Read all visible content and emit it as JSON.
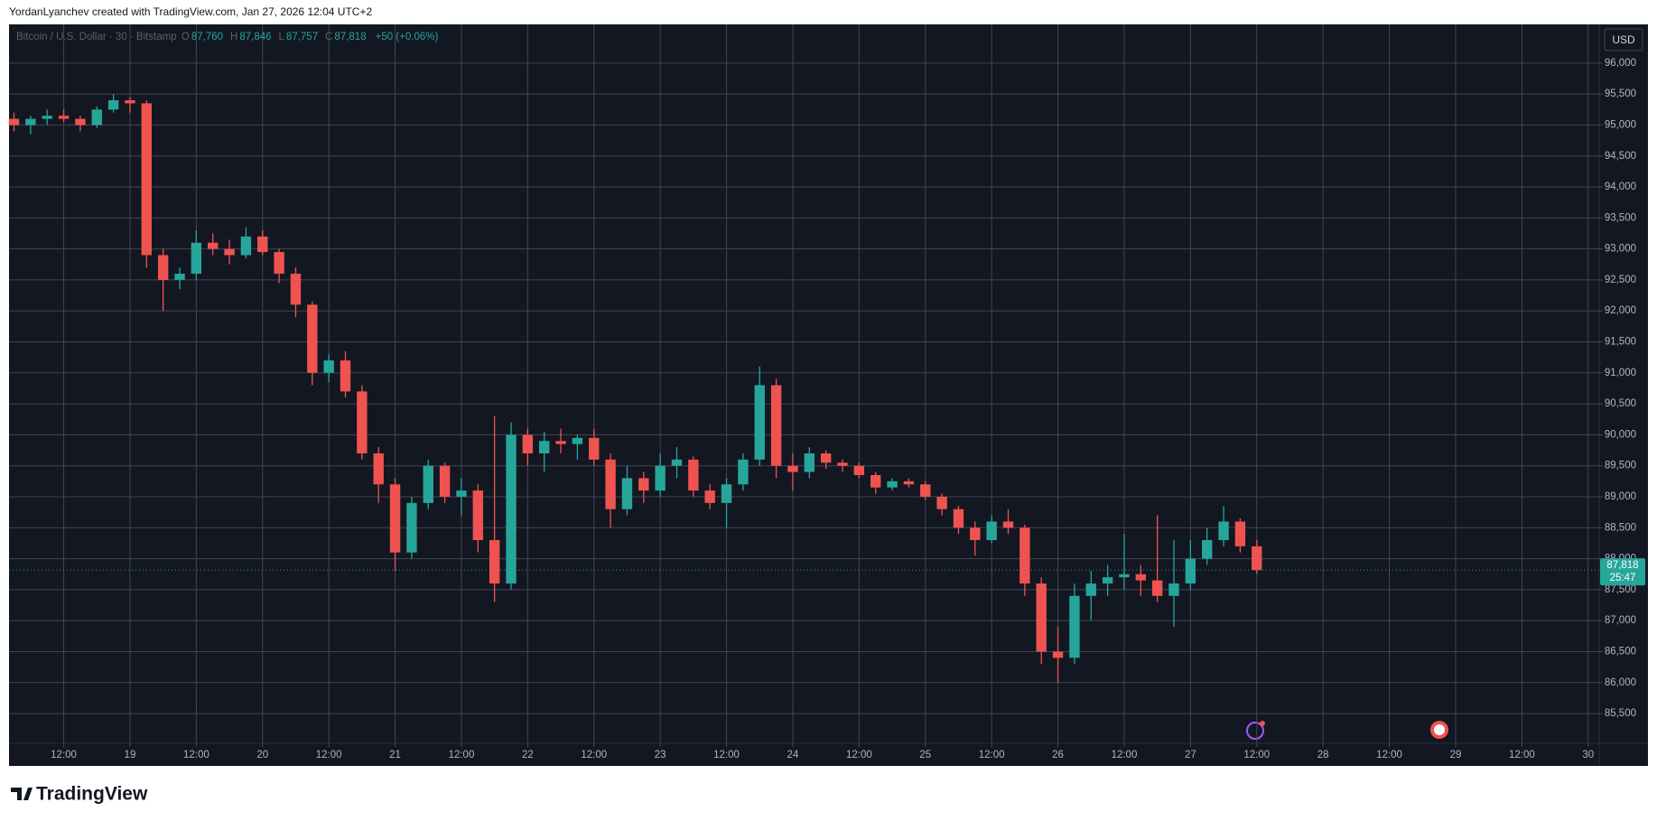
{
  "header": {
    "attribution": "YordanLyanchev created with TradingView.com, Jan 27, 2026 12:04 UTC+2"
  },
  "footer": {
    "brand": "TradingView"
  },
  "chart_data": {
    "type": "candlestick",
    "title": "Bitcoin / U.S. Dollar · 30 · Bitstamp",
    "ohlc_legend": [
      {
        "key": "O",
        "value": "87,760"
      },
      {
        "key": "H",
        "value": "87,846"
      },
      {
        "key": "L",
        "value": "87,757"
      },
      {
        "key": "C",
        "value": "87,818"
      },
      {
        "key": "",
        "value": "+50 (+0.06%)"
      }
    ],
    "currency": "USD",
    "up_color": "#26a69a",
    "down_color": "#ef5350",
    "x": [
      3,
      6,
      9,
      12,
      15,
      18,
      21,
      24,
      27,
      30,
      33,
      36,
      39,
      42,
      45,
      48,
      51,
      54,
      57,
      60,
      63,
      66,
      69,
      72,
      75,
      78,
      81,
      84,
      87,
      90,
      93,
      96,
      99,
      102,
      105,
      108,
      111,
      114,
      117,
      120,
      123,
      126,
      129,
      132,
      135,
      138,
      141,
      144,
      147,
      150,
      153,
      156,
      159,
      162,
      165,
      168,
      171,
      174,
      177,
      180,
      183,
      186,
      189,
      192,
      195,
      198,
      201,
      204,
      207,
      210,
      213,
      216,
      219,
      222,
      225,
      228
    ],
    "open": [
      95100,
      95000,
      95100,
      95150,
      95100,
      95000,
      95250,
      95400,
      95350,
      92900,
      92500,
      92600,
      93100,
      93000,
      92900,
      93200,
      92950,
      92600,
      92100,
      91000,
      91200,
      90700,
      89700,
      89200,
      88100,
      88900,
      89500,
      89000,
      89100,
      88300,
      87600,
      90000,
      89700,
      89900,
      89850,
      89950,
      89600,
      88800,
      89300,
      89100,
      89500,
      89600,
      89100,
      88900,
      89200,
      89600,
      90800,
      89500,
      89400,
      89700,
      89550,
      89500,
      89350,
      89150,
      89250,
      89200,
      89000,
      88800,
      88500,
      88300,
      88600,
      88500,
      87600,
      86500,
      86400,
      87400,
      87600,
      87700,
      87750,
      87650,
      87400,
      87600,
      88000,
      88300,
      88600,
      88200
    ],
    "high": [
      95200,
      95150,
      95250,
      95250,
      95150,
      95300,
      95500,
      95450,
      95400,
      93000,
      92700,
      93300,
      93250,
      93150,
      93350,
      93300,
      93000,
      92700,
      92150,
      91300,
      91350,
      90800,
      89800,
      89300,
      89000,
      89600,
      89550,
      89300,
      89200,
      90300,
      90200,
      90100,
      90050,
      90100,
      90000,
      90100,
      89700,
      89500,
      89400,
      89700,
      89800,
      89650,
      89200,
      89300,
      89700,
      91100,
      90900,
      89700,
      89800,
      89750,
      89600,
      89550,
      89400,
      89300,
      89300,
      89250,
      89050,
      88850,
      88600,
      88700,
      88800,
      88550,
      87700,
      86900,
      87600,
      87800,
      87900,
      88400,
      87900,
      88700,
      88300,
      88300,
      88500,
      88850,
      88650,
      88300
    ],
    "low": [
      94900,
      94850,
      95000,
      95050,
      94900,
      94950,
      95200,
      95200,
      92700,
      92000,
      92350,
      92500,
      92900,
      92750,
      92850,
      92900,
      92450,
      91900,
      90800,
      90850,
      90600,
      89600,
      88900,
      87800,
      88000,
      88800,
      88900,
      88700,
      88100,
      87300,
      87500,
      89500,
      89400,
      89700,
      89600,
      89500,
      88500,
      88700,
      88900,
      89000,
      89300,
      89000,
      88800,
      88500,
      89100,
      89500,
      89300,
      89100,
      89300,
      89450,
      89400,
      89300,
      89050,
      89100,
      89150,
      88950,
      88700,
      88400,
      88050,
      88250,
      88400,
      87400,
      86300,
      86000,
      86300,
      87000,
      87400,
      87500,
      87400,
      87300,
      86900,
      87500,
      87900,
      88200,
      88100,
      87757
    ],
    "close": [
      95000,
      95100,
      95150,
      95100,
      95000,
      95250,
      95400,
      95350,
      92900,
      92500,
      92600,
      93100,
      93000,
      92900,
      93200,
      92950,
      92600,
      92100,
      91000,
      91200,
      90700,
      89700,
      89200,
      88100,
      88900,
      89500,
      89000,
      89100,
      88300,
      87600,
      90000,
      89700,
      89900,
      89850,
      89950,
      89600,
      88800,
      89300,
      89100,
      89500,
      89600,
      89100,
      88900,
      89200,
      89600,
      90800,
      89500,
      89400,
      89700,
      89550,
      89500,
      89350,
      89150,
      89250,
      89200,
      89000,
      88800,
      88500,
      88300,
      88600,
      88500,
      87600,
      86500,
      86400,
      87400,
      87600,
      87700,
      87750,
      87650,
      87400,
      87600,
      88000,
      88300,
      88600,
      88200,
      87818
    ],
    "xlim": [
      2.1,
      290
    ],
    "xticks": [
      {
        "value": 12,
        "label": "12:00"
      },
      {
        "value": 24,
        "label": "19"
      },
      {
        "value": 36,
        "label": "12:00"
      },
      {
        "value": 48,
        "label": "20"
      },
      {
        "value": 60,
        "label": "12:00"
      },
      {
        "value": 72,
        "label": "21"
      },
      {
        "value": 84,
        "label": "12:00"
      },
      {
        "value": 96,
        "label": "22"
      },
      {
        "value": 108,
        "label": "12:00"
      },
      {
        "value": 120,
        "label": "23"
      },
      {
        "value": 132,
        "label": "12:00"
      },
      {
        "value": 144,
        "label": "24"
      },
      {
        "value": 156,
        "label": "12:00"
      },
      {
        "value": 168,
        "label": "25"
      },
      {
        "value": 180,
        "label": "12:00"
      },
      {
        "value": 192,
        "label": "26"
      },
      {
        "value": 204,
        "label": "12:00"
      },
      {
        "value": 216,
        "label": "27"
      },
      {
        "value": 228,
        "label": "12:00"
      },
      {
        "value": 240,
        "label": "28"
      },
      {
        "value": 252,
        "label": "12:00"
      },
      {
        "value": 264,
        "label": "29"
      },
      {
        "value": 276,
        "label": "12:00"
      },
      {
        "value": 288,
        "label": "30"
      }
    ],
    "ylim": [
      85020,
      96610
    ],
    "yticks": [
      {
        "value": 85500,
        "label": "85,500"
      },
      {
        "value": 86000,
        "label": "86,000"
      },
      {
        "value": 86500,
        "label": "86,500"
      },
      {
        "value": 87000,
        "label": "87,000"
      },
      {
        "value": 87500,
        "label": "87,500"
      },
      {
        "value": 88000,
        "label": "88,000"
      },
      {
        "value": 88500,
        "label": "88,500"
      },
      {
        "value": 89000,
        "label": "89,000"
      },
      {
        "value": 89500,
        "label": "89,500"
      },
      {
        "value": 90000,
        "label": "90,000"
      },
      {
        "value": 90500,
        "label": "90,500"
      },
      {
        "value": 91000,
        "label": "91,000"
      },
      {
        "value": 91500,
        "label": "91,500"
      },
      {
        "value": 92000,
        "label": "92,000"
      },
      {
        "value": 92500,
        "label": "92,500"
      },
      {
        "value": 93000,
        "label": "93,000"
      },
      {
        "value": 93500,
        "label": "93,500"
      },
      {
        "value": 94000,
        "label": "94,000"
      },
      {
        "value": 94500,
        "label": "94,500"
      },
      {
        "value": 95000,
        "label": "95,000"
      },
      {
        "value": 95500,
        "label": "95,500"
      },
      {
        "value": 96000,
        "label": "96,000"
      }
    ],
    "grid": true,
    "last_price": {
      "value": 87818,
      "label": "87,818"
    },
    "countdown": "25:47"
  }
}
